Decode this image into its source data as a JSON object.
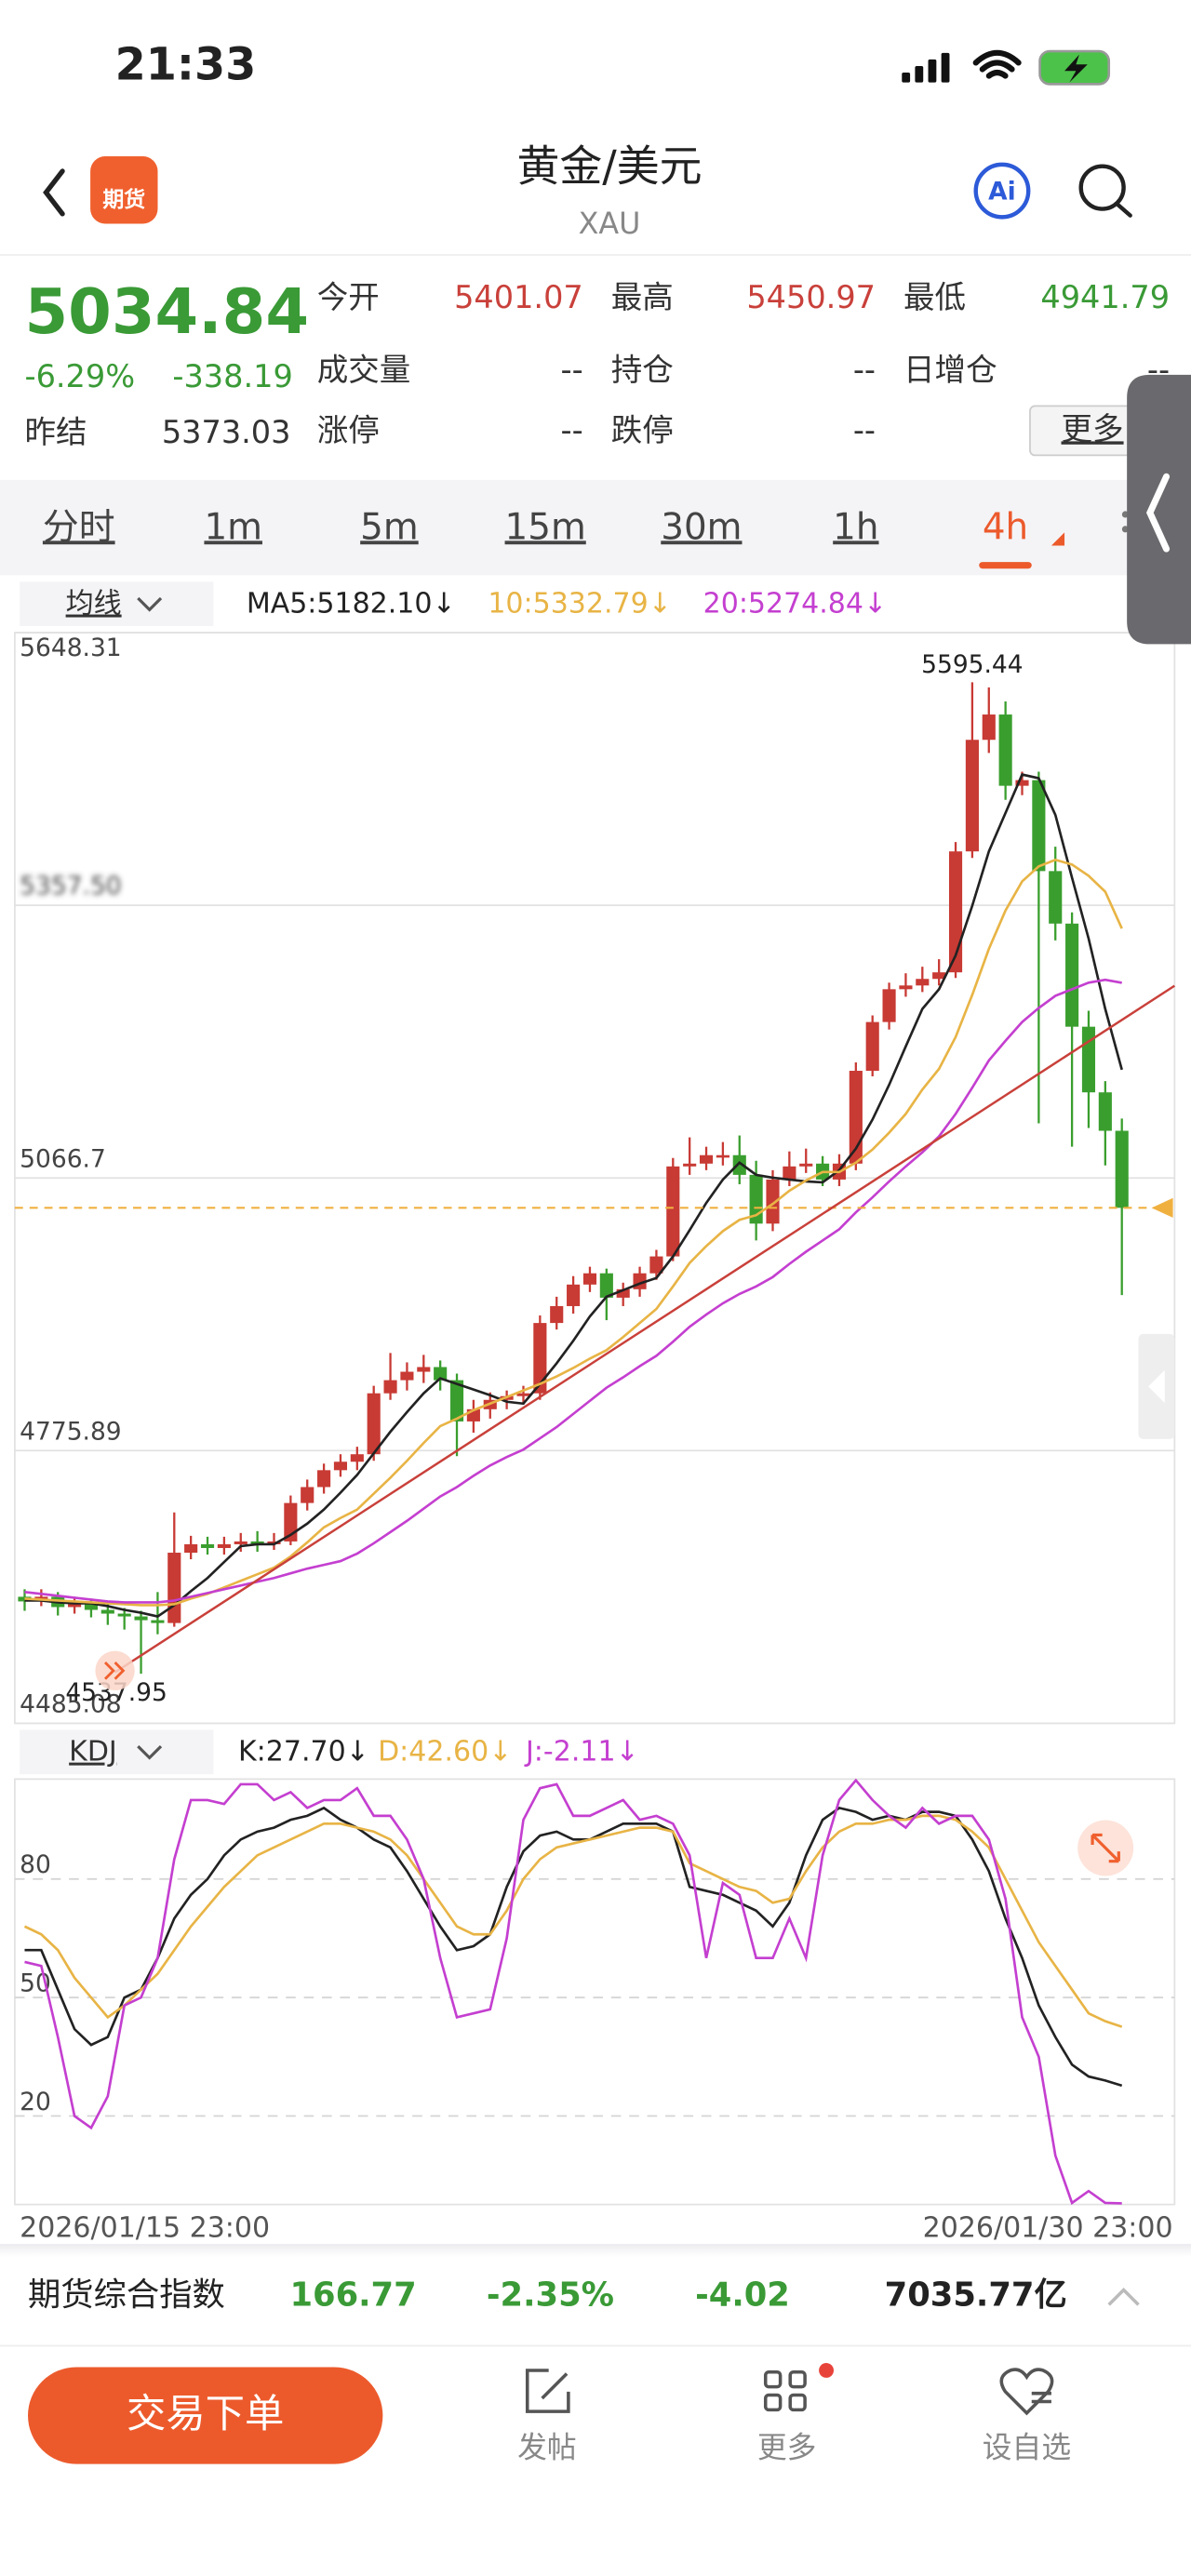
{
  "status_bar": {
    "time": "21:33"
  },
  "header": {
    "badge": "期货",
    "title": "黄金/美元",
    "subtitle": "XAU",
    "ai": "Ai"
  },
  "quote": {
    "price": "5034.84",
    "change_pct": "-6.29%",
    "change": "-338.19",
    "prev_settle_label": "昨结",
    "prev_settle": "5373.03",
    "fields": [
      {
        "label": "今开",
        "value": "5401.07",
        "color": "#c9403a"
      },
      {
        "label": "最高",
        "value": "5450.97",
        "color": "#c9403a"
      },
      {
        "label": "最低",
        "value": "4941.79",
        "color": "#3a9a36"
      },
      {
        "label": "成交量",
        "value": "--",
        "color": "#333333"
      },
      {
        "label": "持仓",
        "value": "--",
        "color": "#333333"
      },
      {
        "label": "日增仓",
        "value": "--",
        "color": "#333333"
      },
      {
        "label": "涨停",
        "value": "--",
        "color": "#333333"
      },
      {
        "label": "跌停",
        "value": "--",
        "color": "#333333"
      }
    ],
    "more": "更多"
  },
  "tabs": [
    "分时",
    "1m",
    "5m",
    "15m",
    "30m",
    "1h",
    "4h"
  ],
  "active_tab": "4h",
  "ma_toggle": "均线",
  "kdj_toggle": "KDJ",
  "chart_data": [
    {
      "type": "candlestick",
      "up_color": "#c83a34",
      "down_color": "#3a9e2e",
      "ylim": [
        4485.08,
        5648.31
      ],
      "yticks": [
        4485.08,
        4775.89,
        5066.7,
        {
          "value": 5357.5,
          "label": "5357.50"
        },
        5648.31
      ],
      "grid": true,
      "high_label": "5595.44",
      "low_label": "4537.95",
      "candles": [
        [
          4620,
          4628,
          4605,
          4615
        ],
        [
          4615,
          4628,
          4610,
          4620
        ],
        [
          4620,
          4625,
          4600,
          4609
        ],
        [
          4609,
          4620,
          4602,
          4613
        ],
        [
          4613,
          4618,
          4598,
          4606
        ],
        [
          4606,
          4612,
          4590,
          4602
        ],
        [
          4602,
          4608,
          4585,
          4599
        ],
        [
          4599,
          4605,
          4537.95,
          4595
        ],
        [
          4595,
          4625,
          4580,
          4592
        ],
        [
          4592,
          4710,
          4588,
          4667
        ],
        [
          4667,
          4685,
          4660,
          4676
        ],
        [
          4676,
          4684,
          4665,
          4672
        ],
        [
          4672,
          4684,
          4665,
          4676
        ],
        [
          4676,
          4688,
          4668,
          4679
        ],
        [
          4679,
          4690,
          4668,
          4676
        ],
        [
          4676,
          4688,
          4670,
          4679
        ],
        [
          4679,
          4728,
          4675,
          4720
        ],
        [
          4720,
          4745,
          4712,
          4737
        ],
        [
          4737,
          4762,
          4730,
          4755
        ],
        [
          4755,
          4772,
          4748,
          4764
        ],
        [
          4764,
          4780,
          4755,
          4772
        ],
        [
          4772,
          4845,
          4765,
          4837
        ],
        [
          4837,
          4880,
          4830,
          4851
        ],
        [
          4851,
          4870,
          4840,
          4860
        ],
        [
          4860,
          4878,
          4848,
          4865
        ],
        [
          4865,
          4872,
          4840,
          4851
        ],
        [
          4851,
          4858,
          4770,
          4807
        ],
        [
          4807,
          4830,
          4795,
          4820
        ],
        [
          4820,
          4838,
          4810,
          4830
        ],
        [
          4830,
          4840,
          4820,
          4834
        ],
        [
          4834,
          4845,
          4825,
          4837
        ],
        [
          4837,
          4920,
          4830,
          4912
        ],
        [
          4912,
          4940,
          4905,
          4930
        ],
        [
          4930,
          4962,
          4922,
          4953
        ],
        [
          4953,
          4972,
          4945,
          4965
        ],
        [
          4965,
          4970,
          4915,
          4939
        ],
        [
          4939,
          4955,
          4930,
          4948
        ],
        [
          4948,
          4972,
          4940,
          4965
        ],
        [
          4965,
          4990,
          4958,
          4983
        ],
        [
          4983,
          5088,
          4978,
          5079
        ],
        [
          5079,
          5110,
          5070,
          5082
        ],
        [
          5082,
          5100,
          5075,
          5091
        ],
        [
          5091,
          5105,
          5080,
          5091
        ],
        [
          5091,
          5112,
          5060,
          5070
        ],
        [
          5070,
          5085,
          5000,
          5018
        ],
        [
          5018,
          5075,
          5010,
          5065
        ],
        [
          5065,
          5095,
          5058,
          5079
        ],
        [
          5079,
          5098,
          5072,
          5082
        ],
        [
          5082,
          5090,
          5058,
          5065
        ],
        [
          5065,
          5092,
          5058,
          5082
        ],
        [
          5082,
          5190,
          5075,
          5181
        ],
        [
          5181,
          5240,
          5175,
          5233
        ],
        [
          5233,
          5275,
          5225,
          5268
        ],
        [
          5268,
          5285,
          5260,
          5272
        ],
        [
          5272,
          5292,
          5265,
          5279
        ],
        [
          5279,
          5300,
          5272,
          5286
        ],
        [
          5286,
          5425,
          5280,
          5415
        ],
        [
          5415,
          5595.44,
          5408,
          5534
        ],
        [
          5534,
          5590,
          5520,
          5561
        ],
        [
          5561,
          5575,
          5470,
          5485
        ],
        [
          5485,
          5500,
          5475,
          5491
        ],
        [
          5491,
          5500,
          5125,
          5394
        ],
        [
          5394,
          5420,
          5320,
          5338
        ],
        [
          5338,
          5350,
          5100,
          5228
        ],
        [
          5228,
          5245,
          5120,
          5158
        ],
        [
          5158,
          5170,
          5080,
          5117
        ],
        [
          5117,
          5130,
          4941.79,
          5034.84
        ]
      ],
      "series": [
        {
          "name": "MA5:5182.10↓",
          "color": "#222222",
          "values": [
            4616,
            4616,
            4614,
            4613,
            4613,
            4610,
            4606,
            4603,
            4599,
            4611,
            4626,
            4640,
            4657,
            4674,
            4676,
            4676,
            4686,
            4698,
            4713,
            4731,
            4750,
            4773,
            4796,
            4817,
            4837,
            4853,
            4847,
            4841,
            4835,
            4828,
            4826,
            4847,
            4869,
            4893,
            4919,
            4940,
            4947,
            4954,
            4960,
            4983,
            5011,
            5040,
            5065,
            5083,
            5070,
            5067,
            5065,
            5063,
            5062,
            5075,
            5098,
            5129,
            5166,
            5207,
            5247,
            5268,
            5304,
            5357,
            5415,
            5456,
            5497,
            5493,
            5454,
            5387,
            5322,
            5247,
            5182.1
          ]
        },
        {
          "name": "10:5332.79↓",
          "color": "#e8b445",
          "values": [
            4618,
            4617,
            4616,
            4615,
            4614,
            4613,
            4612,
            4611,
            4611,
            4612,
            4618,
            4623,
            4630,
            4637,
            4644,
            4651,
            4663,
            4678,
            4694,
            4704,
            4713,
            4730,
            4747,
            4765,
            4784,
            4802,
            4810,
            4819,
            4826,
            4833,
            4840,
            4847,
            4855,
            4864,
            4874,
            4883,
            4897,
            4912,
            4927,
            4951,
            4976,
            4994,
            5010,
            5022,
            5027,
            5039,
            5053,
            5064,
            5073,
            5073,
            5083,
            5097,
            5115,
            5135,
            5161,
            5183,
            5217,
            5262,
            5311,
            5352,
            5383,
            5399,
            5406,
            5401,
            5389,
            5372,
            5332.79
          ]
        },
        {
          "name": "20:5274.84↓",
          "color": "#c43fd0",
          "values": [
            4625,
            4623,
            4621,
            4619,
            4617,
            4615,
            4614,
            4614,
            4614,
            4616,
            4620,
            4624,
            4628,
            4632,
            4636,
            4640,
            4645,
            4650,
            4654,
            4658,
            4666,
            4677,
            4689,
            4701,
            4714,
            4727,
            4737,
            4749,
            4760,
            4769,
            4777,
            4789,
            4801,
            4815,
            4829,
            4843,
            4854,
            4866,
            4877,
            4892,
            4908,
            4921,
            4933,
            4943,
            4951,
            4961,
            4975,
            4988,
            5000,
            5012,
            5030,
            5046,
            5063,
            5079,
            5094,
            5111,
            5135,
            5163,
            5192,
            5213,
            5233,
            5248,
            5261,
            5268,
            5275,
            5278,
            5274.84
          ]
        }
      ]
    },
    {
      "type": "line",
      "ylim": [
        -2.4,
        105.3
      ],
      "yticks": [
        20,
        50,
        80
      ],
      "grid": true,
      "x_labels": [
        "2026/01/15 23:00",
        "2026/01/30 23:00"
      ],
      "series": [
        {
          "name": "K:27.70↓",
          "color": "#222222",
          "values": [
            62,
            62,
            52,
            42,
            38,
            40,
            50,
            52,
            60,
            70,
            76,
            80,
            86,
            90,
            92,
            93,
            95,
            96,
            98,
            95,
            93,
            90,
            88,
            82,
            75,
            68,
            62,
            63,
            66,
            78,
            87,
            91,
            92,
            90,
            90,
            92,
            94,
            94,
            94,
            92,
            78,
            77,
            76,
            74,
            72,
            68,
            74,
            86,
            95,
            98,
            97,
            95,
            96,
            95,
            97,
            97,
            96,
            90,
            82,
            70,
            60,
            48,
            40,
            33,
            30,
            29,
            27.7
          ]
        },
        {
          "name": "D:42.60↓",
          "color": "#e8b445",
          "values": [
            68,
            66,
            62,
            55,
            50,
            45,
            48,
            52,
            56,
            62,
            68,
            73,
            78,
            82,
            86,
            88,
            90,
            92,
            94,
            94,
            93,
            92,
            90,
            86,
            80,
            74,
            68,
            66,
            66,
            72,
            80,
            85,
            88,
            89,
            90,
            91,
            92,
            93,
            93,
            92,
            84,
            82,
            80,
            78,
            77,
            74,
            75,
            82,
            88,
            92,
            94,
            94,
            95,
            95,
            96,
            96,
            95,
            92,
            88,
            80,
            72,
            64,
            58,
            52,
            46,
            44,
            42.6
          ]
        },
        {
          "name": "J:-2.11↓",
          "color": "#c43fd0",
          "values": [
            59,
            58,
            40,
            20,
            17,
            25,
            48,
            50,
            60,
            85,
            100,
            100,
            99,
            104,
            104,
            100,
            102,
            98,
            100,
            100,
            103,
            96,
            96,
            90,
            80,
            60,
            45,
            46,
            47,
            65,
            95,
            103,
            104,
            96,
            96,
            98,
            100,
            95,
            96,
            94,
            86,
            60,
            79,
            76,
            60,
            60,
            70,
            60,
            86,
            100,
            105,
            100,
            96,
            93,
            98,
            94,
            96,
            96,
            90,
            75,
            45,
            35,
            10,
            -2,
            1,
            -2,
            -2.11
          ]
        }
      ]
    }
  ],
  "index_bar": {
    "name": "期货综合指数",
    "value": "166.77",
    "change_pct": "-2.35%",
    "change": "-4.02",
    "turnover": "7035.77亿"
  },
  "bottom_nav": {
    "button": "交易下单",
    "items": [
      "发帖",
      "更多",
      "设自选"
    ]
  }
}
